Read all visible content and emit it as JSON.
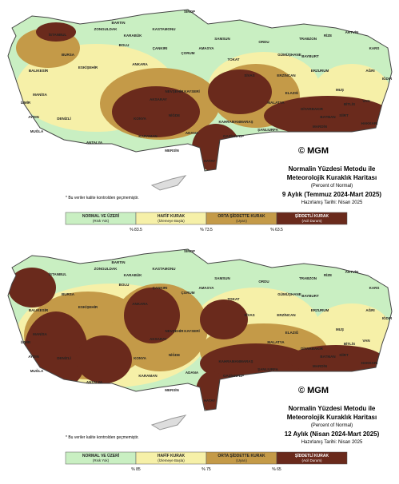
{
  "city_labels": [
    "SİNOP",
    "BARTIN",
    "ZONGULDAK",
    "KASTAMONU",
    "KARABÜK",
    "SAMSUN",
    "ORDU",
    "TRABZON",
    "RİZE",
    "ARTVİN",
    "KARS",
    "ERZURUM",
    "AĞRI",
    "IĞDIR",
    "İSTANBUL",
    "BOLU",
    "ÇANKIRI",
    "ÇORUM",
    "AMASYA",
    "TOKAT",
    "SİVAS",
    "ANKARA",
    "ESKİŞEHİR",
    "BURSA",
    "BALIKESİR",
    "İZMİR",
    "MANİSA",
    "AYDIN",
    "MUĞLA",
    "DENİZLİ",
    "KONYA",
    "ANTALYA",
    "KARAMAN",
    "ADANA",
    "KAYSERİ",
    "MALATYA",
    "DİYARBAKIR",
    "VAN",
    "HAKKARİ",
    "ŞANLIURFA",
    "MARDİN",
    "KAHRAMANMARAŞ",
    "GAZİANTEP",
    "MERSİN",
    "HATAY",
    "MUŞ",
    "BİTLİS",
    "SİİRT",
    "BATMAN",
    "ELAZIĞ",
    "ERZİNCAN",
    "GÜMÜŞHANE",
    "BAYBURT",
    "AKSARAY",
    "NİĞDE",
    "NEVŞEHİR"
  ],
  "legend": [
    {
      "label": "NORMAL VE ÜZERİ",
      "note": "(Risk Yok)",
      "color": "#c9efc2"
    },
    {
      "label": "HAFİF KURAK",
      "note": "(İzlemeye Başla)",
      "color": "#f6f0a8"
    },
    {
      "label": "ORTA ŞİDDETTE KURAK",
      "note": "(Uyarı)",
      "color": "#c49a48"
    },
    {
      "label": "ŞİDDETLİ KURAK",
      "note": "(Acil Durum)",
      "color": "#6a2a1c"
    }
  ],
  "logo": "© MGM",
  "panels": [
    {
      "title": [
        "Normalin Yüzdesi Metodu ile",
        "Meteorolojik Kuraklık Haritası"
      ],
      "subtitle": "(Percent of Normal)",
      "period": "9 Aylık (Temmuz 2024-Mart 2025)",
      "prepared": "Hazırlanış Tarihi: Nisan 2025",
      "note": "* Bu veriler kalite kontrolden geçmemiştir.",
      "thresholds": [
        "% 83.5",
        "% 73.5",
        "% 63.5"
      ]
    },
    {
      "title": [
        "Normalin Yüzdesi Metodu ile",
        "Meteorolojik Kuraklık Haritası"
      ],
      "subtitle": "(Percent of Normal)",
      "period": "12 Aylık (Nisan 2024-Mart 2025)",
      "prepared": "Hazırlanış Tarihi: Nisan 2025",
      "note": "* Bu veriler kalite kontrolden geçmemiştir.",
      "thresholds": [
        "% 85",
        "% 75",
        "% 65"
      ]
    }
  ]
}
